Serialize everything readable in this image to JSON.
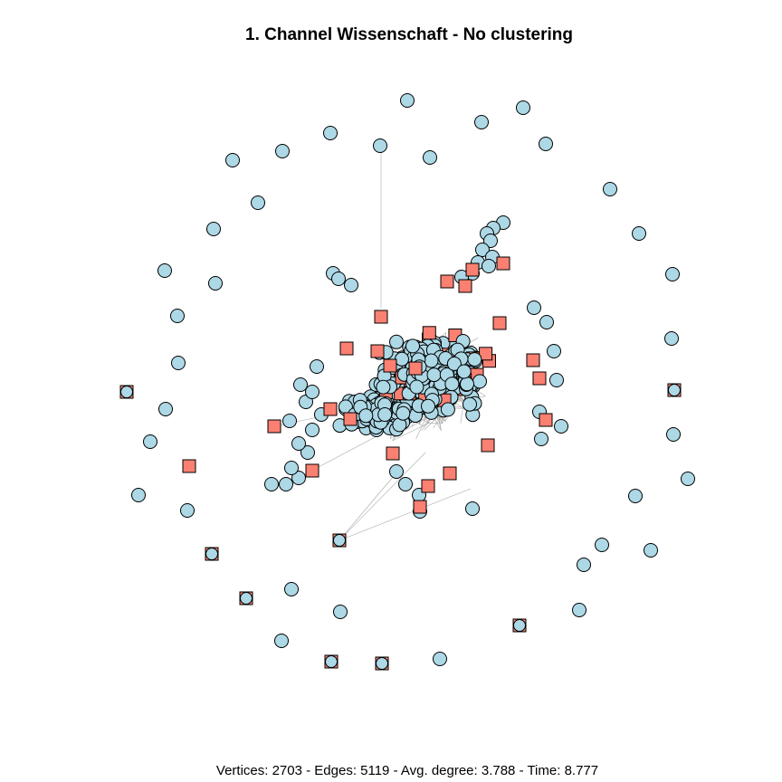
{
  "title": "1. Channel Wissenschaft - No clustering",
  "caption": "Vertices: 2703 - Edges: 5119 - Avg. degree: 3.788 - Time: 8.777",
  "colors": {
    "circle_node": "#add8e6",
    "square_node": "#fa8072",
    "node_stroke": "#000000",
    "edge": "#a9a9a9"
  },
  "node_shapes": [
    "circle",
    "square"
  ]
}
